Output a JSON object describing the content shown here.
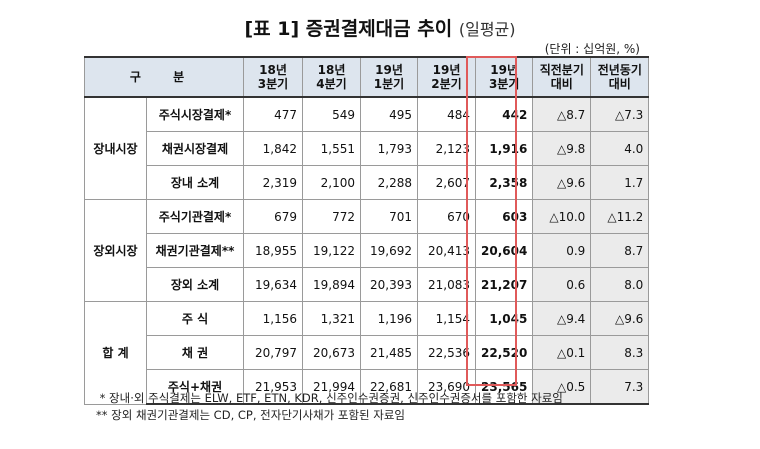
{
  "title": "[표 1] 증권결제대금 추이",
  "title_suffix": "(일평균)",
  "unit": "(단위 : 십억원, %)",
  "header": {
    "label": "구 분",
    "cols": [
      "18년\n3분기",
      "18년\n4분기",
      "19년\n1분기",
      "19년\n2분기",
      "19년\n3분기",
      "직전분기\n대비",
      "전년동기\n대비"
    ]
  },
  "groups": [
    {
      "name": "장내시장",
      "rows": [
        {
          "label": "주식시장결제*",
          "values": [
            "477",
            "549",
            "495",
            "484",
            "442"
          ],
          "qoq": "△8.7",
          "yoy": "△7.3"
        },
        {
          "label": "채권시장결제",
          "values": [
            "1,842",
            "1,551",
            "1,793",
            "2,123",
            "1,916"
          ],
          "qoq": "△9.8",
          "yoy": "4.0"
        },
        {
          "label": "장내 소계",
          "values": [
            "2,319",
            "2,100",
            "2,288",
            "2,607",
            "2,358"
          ],
          "qoq": "△9.6",
          "yoy": "1.7"
        }
      ]
    },
    {
      "name": "장외시장",
      "rows": [
        {
          "label": "주식기관결제*",
          "values": [
            "679",
            "772",
            "701",
            "670",
            "603"
          ],
          "qoq": "△10.0",
          "yoy": "△11.2"
        },
        {
          "label": "채권기관결제**",
          "values": [
            "18,955",
            "19,122",
            "19,692",
            "20,413",
            "20,604"
          ],
          "qoq": "0.9",
          "yoy": "8.7"
        },
        {
          "label": "장외 소계",
          "values": [
            "19,634",
            "19,894",
            "20,393",
            "21,083",
            "21,207"
          ],
          "qoq": "0.6",
          "yoy": "8.0"
        }
      ]
    },
    {
      "name": "합 계",
      "rows": [
        {
          "label": "주 식",
          "values": [
            "1,156",
            "1,321",
            "1,196",
            "1,154",
            "1,045"
          ],
          "qoq": "△9.4",
          "yoy": "△9.6"
        },
        {
          "label": "채 권",
          "values": [
            "20,797",
            "20,673",
            "21,485",
            "22,536",
            "22,520"
          ],
          "qoq": "△0.1",
          "yoy": "8.3"
        },
        {
          "label": "주식+채권",
          "values": [
            "21,953",
            "21,994",
            "22,681",
            "23,690",
            "23,565"
          ],
          "qoq": "△0.5",
          "yoy": "7.3"
        }
      ]
    }
  ],
  "notes": [
    " * 장내·외 주식결제는 ELW, ETF, ETN, KDR, 신주인수권증권, 신주인수권증서를 포함한 자료임",
    "** 장외 채권기관결제는 CD, CP, 전자단기사채가 포함된 자료임"
  ],
  "colors": {
    "header_bg": "#dde5ee",
    "change_bg": "#ebebeb",
    "highlight_border": "#e05a5a"
  }
}
